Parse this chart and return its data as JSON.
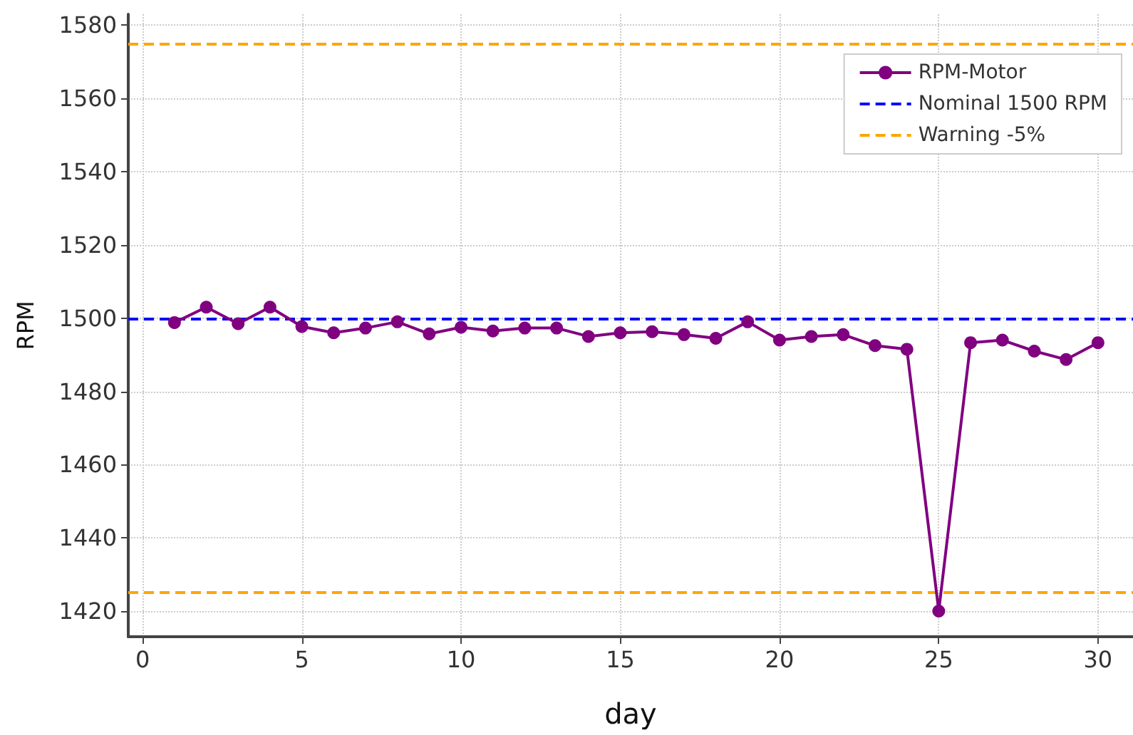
{
  "chart_data": {
    "type": "line",
    "xlabel": "day",
    "ylabel": "RPM",
    "x": [
      1,
      2,
      3,
      4,
      5,
      6,
      7,
      8,
      9,
      10,
      11,
      12,
      13,
      14,
      15,
      16,
      17,
      18,
      19,
      20,
      21,
      22,
      23,
      24,
      25,
      26,
      27,
      28,
      29,
      30
    ],
    "series": [
      {
        "name": "RPM-Motor",
        "color": "#800080",
        "values": [
          1498.8,
          1503,
          1498.5,
          1503,
          1497.7,
          1496,
          1497.3,
          1499,
          1495.7,
          1497.5,
          1496.5,
          1497.3,
          1497.3,
          1495,
          1496,
          1496.3,
          1495.5,
          1494.5,
          1499,
          1494,
          1495,
          1495.5,
          1492.5,
          1491.5,
          1420,
          1493.3,
          1494,
          1491,
          1488.7,
          1493.3
        ]
      }
    ],
    "ref_lines": [
      {
        "axis": "y",
        "value": 1500,
        "label": "Nominal 1500 RPM",
        "color": "#0000ff",
        "line_style": "dashed"
      },
      {
        "axis": "y",
        "value": 1575,
        "label": "Warning -5%",
        "color": "#ffa500",
        "line_style": "dashed"
      },
      {
        "axis": "y",
        "value": 1425,
        "color": "#ffa500",
        "line_style": "dashed"
      }
    ],
    "xlim": [
      -0.45,
      31.1
    ],
    "ylim": [
      1413,
      1583
    ],
    "xticks": [
      0,
      5,
      10,
      15,
      20,
      25,
      30
    ],
    "yticks": [
      1420,
      1440,
      1460,
      1480,
      1500,
      1520,
      1540,
      1560,
      1580
    ],
    "grid": true,
    "legend": "top right",
    "marker": "circle",
    "line_style": "solid"
  }
}
